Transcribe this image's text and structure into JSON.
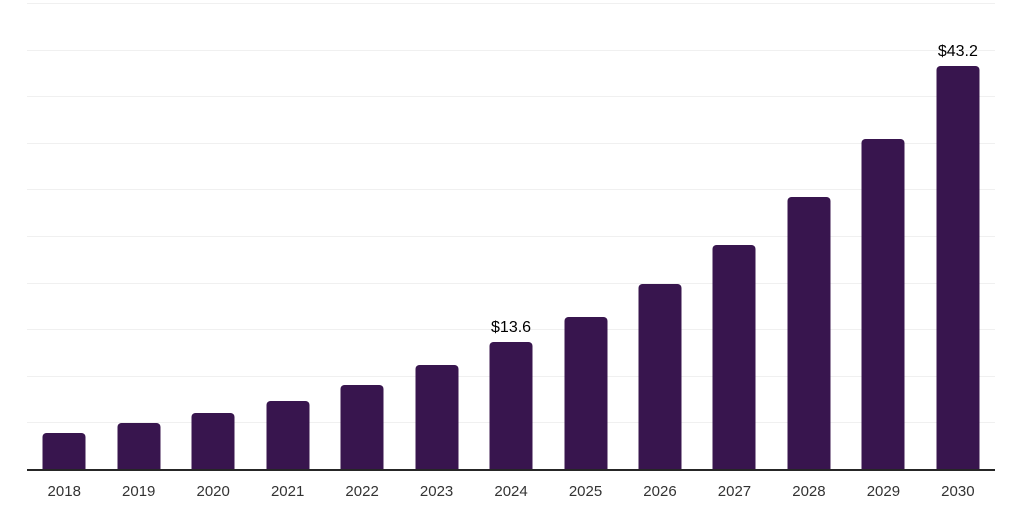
{
  "chart_data": {
    "type": "bar",
    "title": "",
    "xlabel": "",
    "ylabel": "",
    "categories": [
      "2018",
      "2019",
      "2020",
      "2021",
      "2022",
      "2023",
      "2024",
      "2025",
      "2026",
      "2027",
      "2028",
      "2029",
      "2030"
    ],
    "values": [
      3.9,
      4.9,
      6.0,
      7.3,
      9.0,
      11.2,
      13.6,
      16.3,
      19.8,
      24.0,
      29.2,
      35.4,
      43.2
    ],
    "point_labels": {
      "2024": "$13.6",
      "2030": "$43.2"
    },
    "ylim": [
      0,
      50
    ],
    "grid_interval": 5,
    "grid": "on",
    "legend": "none",
    "y_axis_tick_labels": "none",
    "colors": {
      "bar": "#38154e",
      "gridline": "#f0f0f0",
      "axis_line": "#262626",
      "tick_label": "#333333",
      "point_label": "#000000",
      "background": "#ffffff"
    }
  }
}
